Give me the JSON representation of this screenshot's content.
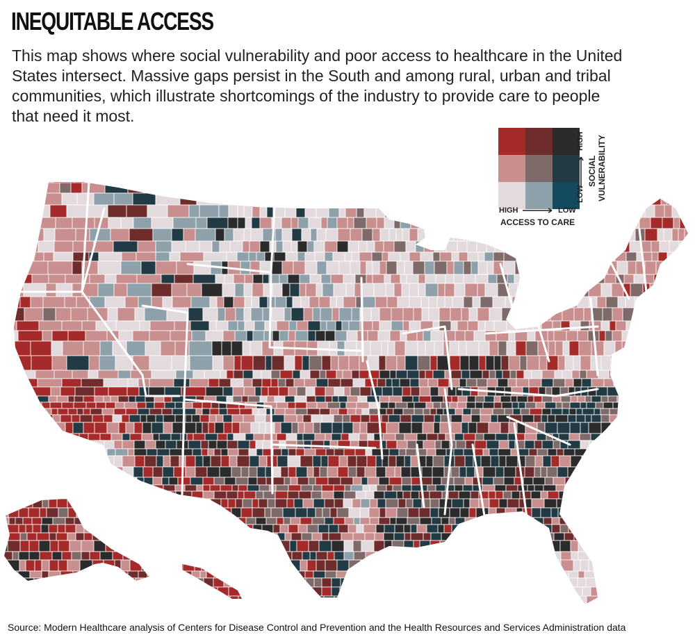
{
  "title": "INEQUITABLE ACCESS",
  "description": "This map shows where social vulnerability and poor access to healthcare in the United States intersect. Massive gaps persist in the South and among rural, urban and tribal communities, which illustrate shortcomings of the industry to provide care to people that need it most.",
  "legend": {
    "x_high": "HIGH",
    "x_low": "LOW",
    "x_title": "ACCESS TO CARE",
    "y_high": "HIGH",
    "y_low": "LOW",
    "y_title_1": "SOCIAL",
    "y_title_2": "VULNERABILITY",
    "colors": [
      [
        "#a52a2a",
        "#6e2c2c",
        "#2b2b2b"
      ],
      [
        "#c98e8e",
        "#7f6a6a",
        "#213a44"
      ],
      [
        "#e2dadc",
        "#8ea0a9",
        "#134a60"
      ]
    ]
  },
  "source": "Source: Modern Healthcare analysis of Centers for Disease Control and Prevention and the Health Resources and Services Administration data",
  "colors": {
    "background": "#ffffff",
    "borders": "#ffffff",
    "text": "#231f20"
  }
}
